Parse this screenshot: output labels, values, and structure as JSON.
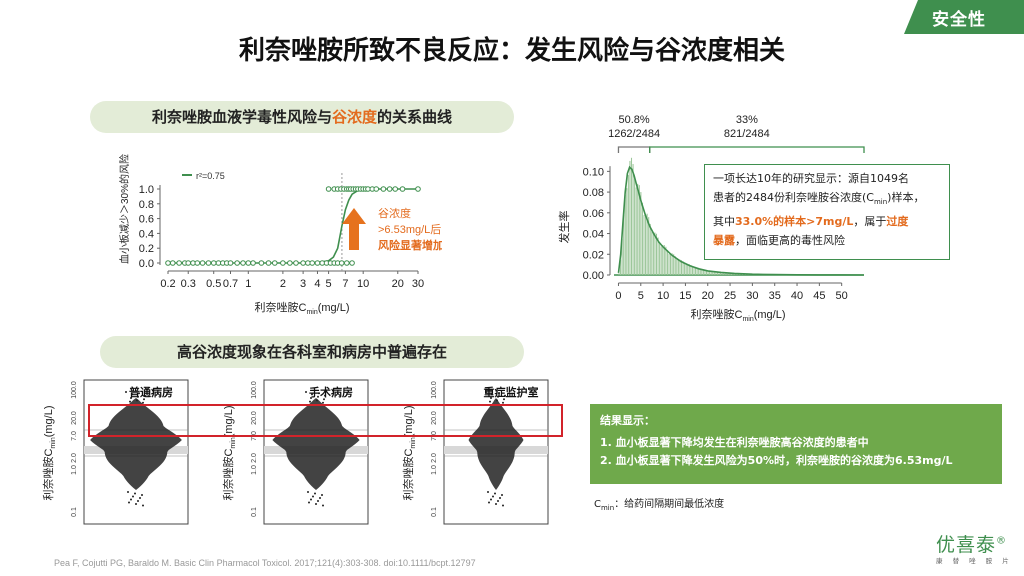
{
  "badge": "安全性",
  "title": "利奈唑胺所致不良反应：发生风险与谷浓度相关",
  "section1": {
    "pre": "利奈唑胺血液学毒性风险与",
    "highlight": "谷浓度",
    "post": "的关系曲线"
  },
  "section2": "高谷浓度现象在各科室和病房中普遍存在",
  "chart_data": [
    {
      "type": "line",
      "legend": "r²=0.75",
      "ylabel": "血小板减少＞30%的风险",
      "xlabel": "利奈唑胺C",
      "xlabel_sub": "min",
      "xlabel_unit": "(mg/L)",
      "x_ticks": [
        "0.2",
        "0.3",
        "0.5",
        "0.7",
        "1",
        "2",
        "3",
        "4",
        "5",
        "7",
        "10",
        "20",
        "30"
      ],
      "y_ticks": [
        "0.0",
        "0.2",
        "0.4",
        "0.6",
        "0.8",
        "1.0"
      ],
      "x_scale": "log",
      "xlim": [
        0.2,
        30
      ],
      "ylim": [
        0,
        1
      ],
      "threshold_x": 6.53,
      "curve": {
        "x": [
          0.2,
          1,
          2,
          3,
          4,
          5,
          5.5,
          6,
          6.53,
          7,
          7.5,
          8,
          9,
          10,
          15,
          20,
          30
        ],
        "y": [
          0,
          0,
          0,
          0,
          0.005,
          0.03,
          0.08,
          0.2,
          0.5,
          0.72,
          0.85,
          0.93,
          0.98,
          1.0,
          1.0,
          1.0,
          1.0
        ]
      },
      "points_zero_x": [
        0.2,
        0.22,
        0.25,
        0.28,
        0.3,
        0.33,
        0.36,
        0.4,
        0.45,
        0.5,
        0.55,
        0.6,
        0.65,
        0.7,
        0.8,
        0.9,
        1.0,
        1.1,
        1.3,
        1.5,
        1.7,
        2.0,
        2.3,
        2.6,
        3.0,
        3.3,
        3.6,
        4.0,
        4.4,
        4.8,
        5.2,
        5.6,
        6.0,
        6.5,
        7.2,
        8.0
      ],
      "points_one_x": [
        5.0,
        5.6,
        6.0,
        6.4,
        6.8,
        7.2,
        7.5,
        7.8,
        8.2,
        8.6,
        9.0,
        9.5,
        10,
        10.5,
        11,
        12,
        13,
        15,
        17,
        19,
        22,
        30
      ],
      "annotation": [
        "谷浓度",
        ">6.53mg/L后，",
        "风险显著增加"
      ]
    },
    {
      "type": "bar",
      "ylabel": "发生率",
      "xlabel": "利奈唑胺C",
      "xlabel_sub": "min",
      "xlabel_unit": "(mg/L)",
      "x_ticks": [
        "0",
        "5",
        "10",
        "15",
        "20",
        "25",
        "30",
        "35",
        "40",
        "45",
        "50"
      ],
      "y_ticks": [
        "0.00",
        "0.02",
        "0.04",
        "0.06",
        "0.08",
        "0.10"
      ],
      "xlim": [
        -1,
        55
      ],
      "ylim": [
        0,
        0.11
      ],
      "density": {
        "x": [
          0,
          0.5,
          1,
          1.5,
          2,
          2.5,
          3,
          3.5,
          4,
          4.5,
          5,
          6,
          7,
          8,
          9,
          10,
          12,
          14,
          16,
          18,
          20,
          23,
          26,
          30,
          35,
          40,
          45,
          50,
          55
        ],
        "y": [
          0.002,
          0.02,
          0.05,
          0.08,
          0.098,
          0.104,
          0.102,
          0.096,
          0.088,
          0.08,
          0.072,
          0.058,
          0.047,
          0.039,
          0.032,
          0.027,
          0.019,
          0.013,
          0.009,
          0.006,
          0.004,
          0.0025,
          0.0015,
          0.0008,
          0.0004,
          0.0002,
          0.0001,
          0.0001,
          0.0
        ]
      },
      "group_low": {
        "percent": "50.8%",
        "count": "1262/2484",
        "range": [
          0,
          7
        ]
      },
      "group_high": {
        "percent": "33%",
        "count": "821/2484",
        "range": [
          7,
          55
        ]
      }
    }
  ],
  "infobox": {
    "line1": "一项长达10年的研究显示：源自1049名",
    "line2": "患者的2484份利奈唑胺谷浓度(C",
    "line2_sub": "min",
    "line2_post": ")样本，",
    "line3_pre": "其中",
    "line3_hl": "33.0%的样本>7mg/L",
    "line3_mid": "，属于",
    "line3_hl2": "过度",
    "line4_hl": "暴露",
    "line4_post": "，面临更高的毒性风险"
  },
  "panels": {
    "ylabel": "利奈唑胺C",
    "ylabel_sub": "min",
    "ylabel_unit": "(mg/L)",
    "y_ticks": [
      "100.0",
      "20.0",
      "7.0",
      "2.0",
      "1.0",
      "0.1"
    ],
    "titles": [
      "普通病房",
      "手术病房",
      "重症监护室"
    ]
  },
  "results": {
    "title": "结果显示：",
    "item1": "1. 血小板显著下降均发生在利奈唑胺高谷浓度的患者中",
    "item2": "2. 血小板显著下降发生风险为50%时，利奈唑胺的谷浓度为6.53mg/L"
  },
  "cmin_note": {
    "label": "C",
    "sub": "min",
    "text": "：给药间隔期间最低浓度"
  },
  "reference": "Pea F, Cojutti PG, Baraldo M. Basic Clin Pharmacol Toxicol. 2017;121(4):303-308. doi:10.1111/bcpt.12797",
  "logo": {
    "name": "优喜泰",
    "mark": "®",
    "sub": "康 替 唑 胺 片"
  },
  "colors": {
    "green": "#3f8f4e",
    "orange": "#e36b1e",
    "red": "#d2232a",
    "results_bg": "#6fa94b"
  }
}
